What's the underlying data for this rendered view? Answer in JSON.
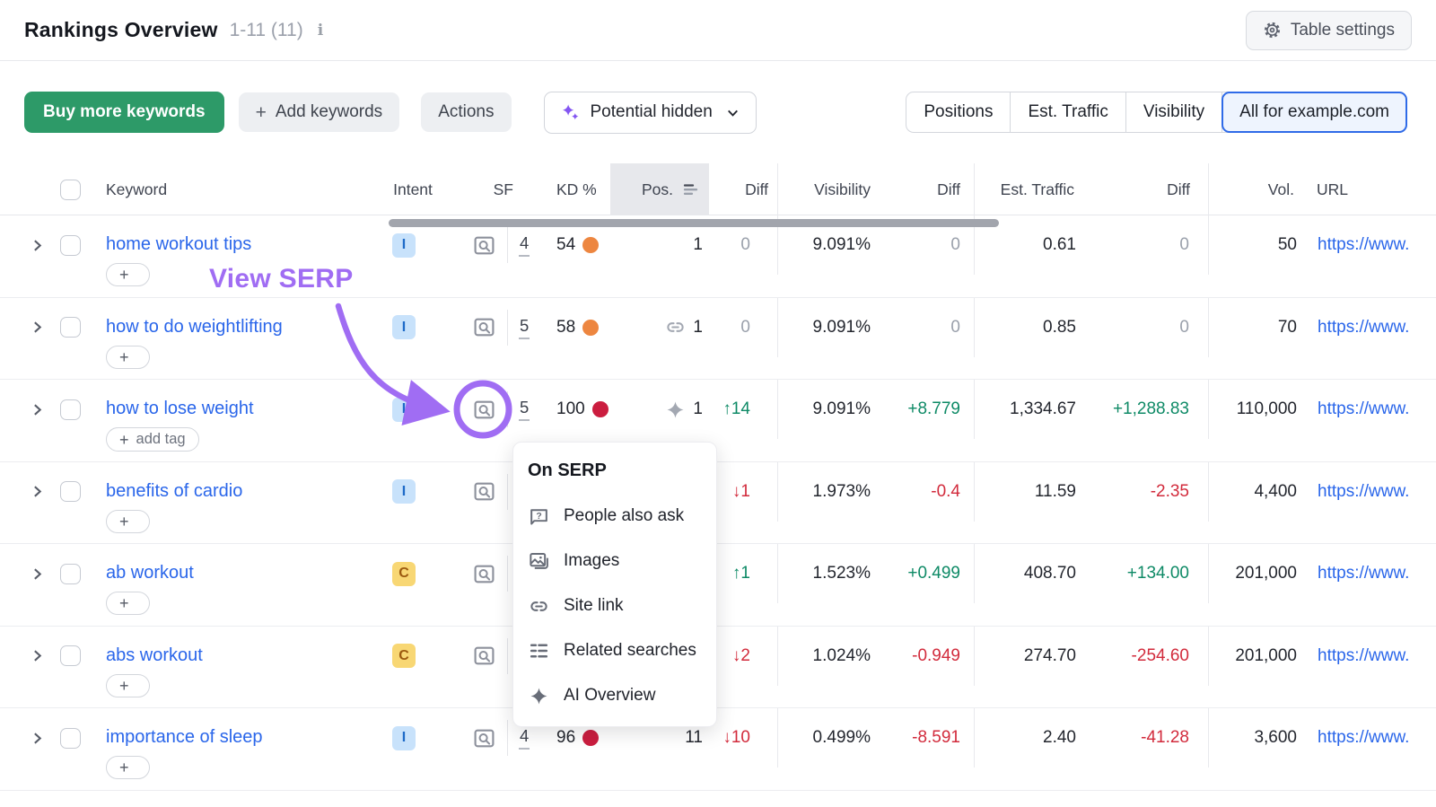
{
  "header": {
    "title": "Rankings Overview",
    "range": "1-11 (11)",
    "info_icon": "i",
    "table_settings_label": "Table settings"
  },
  "toolbar": {
    "buy_more_label": "Buy more keywords",
    "add_keywords_label": "Add keywords",
    "actions_label": "Actions",
    "potential_label": "Potential hidden",
    "view_tabs": [
      {
        "label": "Positions",
        "selected": false
      },
      {
        "label": "Est. Traffic",
        "selected": false
      },
      {
        "label": "Visibility",
        "selected": false
      },
      {
        "label": "All for example.com",
        "selected": true
      }
    ]
  },
  "table": {
    "columns": {
      "keyword": "Keyword",
      "intent": "Intent",
      "sf": "SF",
      "kd": "KD %",
      "pos": "Pos.",
      "diff": "Diff",
      "visibility": "Visibility",
      "diff2": "Diff",
      "est_traffic": "Est. Traffic",
      "diff3": "Diff",
      "vol": "Vol.",
      "url": "URL"
    },
    "rows": [
      {
        "keyword": "home workout tips",
        "tag": null,
        "intent": {
          "label": "I",
          "type": "informational"
        },
        "sf_count": "4",
        "kd": {
          "value": "54",
          "level": "medium"
        },
        "pos": {
          "icon": null,
          "value": "1"
        },
        "pos_diff": {
          "text": "0",
          "dir": "neutral"
        },
        "visibility": "9.091%",
        "visibility_diff": {
          "text": "0",
          "dir": "neutral"
        },
        "est_traffic": "0.61",
        "est_traffic_diff": {
          "text": "0",
          "dir": "neutral"
        },
        "volume": "50",
        "url": "https://www."
      },
      {
        "keyword": "how to do weightlifting",
        "tag": null,
        "intent": {
          "label": "I",
          "type": "informational"
        },
        "sf_count": "5",
        "kd": {
          "value": "58",
          "level": "medium"
        },
        "pos": {
          "icon": "site-link-icon",
          "value": "1"
        },
        "pos_diff": {
          "text": "0",
          "dir": "neutral"
        },
        "visibility": "9.091%",
        "visibility_diff": {
          "text": "0",
          "dir": "neutral"
        },
        "est_traffic": "0.85",
        "est_traffic_diff": {
          "text": "0",
          "dir": "neutral"
        },
        "volume": "70",
        "url": "https://www."
      },
      {
        "keyword": "how to lose weight",
        "tag": "add tag",
        "intent": {
          "label": "I",
          "type": "informational"
        },
        "sf_count": "5",
        "kd": {
          "value": "100",
          "level": "hard"
        },
        "pos": {
          "icon": "ai-overview-icon",
          "value": "1"
        },
        "pos_diff": {
          "text": "↑14",
          "dir": "up"
        },
        "visibility": "9.091%",
        "visibility_diff": {
          "text": "+8.779",
          "dir": "up"
        },
        "est_traffic": "1,334.67",
        "est_traffic_diff": {
          "text": "+1,288.83",
          "dir": "up"
        },
        "volume": "110,000",
        "url": "https://www."
      },
      {
        "keyword": "benefits of cardio",
        "tag": null,
        "intent": {
          "label": "I",
          "type": "informational"
        },
        "sf_count": "",
        "kd": null,
        "pos": null,
        "pos_diff": {
          "text": "↓1",
          "dir": "down"
        },
        "visibility": "1.973%",
        "visibility_diff": {
          "text": "-0.4",
          "dir": "down"
        },
        "est_traffic": "11.59",
        "est_traffic_diff": {
          "text": "-2.35",
          "dir": "down"
        },
        "volume": "4,400",
        "url": "https://www."
      },
      {
        "keyword": "ab workout",
        "tag": null,
        "intent": {
          "label": "C",
          "type": "commercial"
        },
        "sf_count": "",
        "kd": null,
        "pos": null,
        "pos_diff": {
          "text": "↑1",
          "dir": "up"
        },
        "visibility": "1.523%",
        "visibility_diff": {
          "text": "+0.499",
          "dir": "up"
        },
        "est_traffic": "408.70",
        "est_traffic_diff": {
          "text": "+134.00",
          "dir": "up"
        },
        "volume": "201,000",
        "url": "https://www."
      },
      {
        "keyword": "abs workout",
        "tag": null,
        "intent": {
          "label": "C",
          "type": "commercial"
        },
        "sf_count": "",
        "kd": null,
        "pos": null,
        "pos_diff": {
          "text": "↓2",
          "dir": "down"
        },
        "visibility": "1.024%",
        "visibility_diff": {
          "text": "-0.949",
          "dir": "down"
        },
        "est_traffic": "274.70",
        "est_traffic_diff": {
          "text": "-254.60",
          "dir": "down"
        },
        "volume": "201,000",
        "url": "https://www."
      },
      {
        "keyword": "importance of sleep",
        "tag": null,
        "intent": {
          "label": "I",
          "type": "informational"
        },
        "sf_count": "4",
        "kd": {
          "value": "96",
          "level": "hard"
        },
        "pos": {
          "icon": null,
          "value": "11"
        },
        "pos_diff": {
          "text": "↓10",
          "dir": "down"
        },
        "visibility": "0.499%",
        "visibility_diff": {
          "text": "-8.591",
          "dir": "down"
        },
        "est_traffic": "2.40",
        "est_traffic_diff": {
          "text": "-41.28",
          "dir": "down"
        },
        "volume": "3,600",
        "url": "https://www."
      }
    ]
  },
  "popup": {
    "title": "On SERP",
    "items": [
      {
        "icon": "people-also-ask-icon",
        "label": "People also ask"
      },
      {
        "icon": "images-icon",
        "label": "Images"
      },
      {
        "icon": "site-link-icon",
        "label": "Site link"
      },
      {
        "icon": "related-searches-icon",
        "label": "Related searches"
      },
      {
        "icon": "ai-overview-icon",
        "label": "AI Overview"
      }
    ]
  },
  "annotation": {
    "label": "View SERP",
    "color": "#a06df3"
  },
  "colors": {
    "positive": "#0e8a66",
    "negative": "#d22b3c",
    "neutral": "#9aa0ab",
    "link": "#2a66ea",
    "kd_hard": "#cb1d3f",
    "kd_medium": "#ed8640",
    "brand_green": "#2d9a68",
    "selected_tab_border": "#2f6be8",
    "annotation_purple": "#a06df3"
  }
}
